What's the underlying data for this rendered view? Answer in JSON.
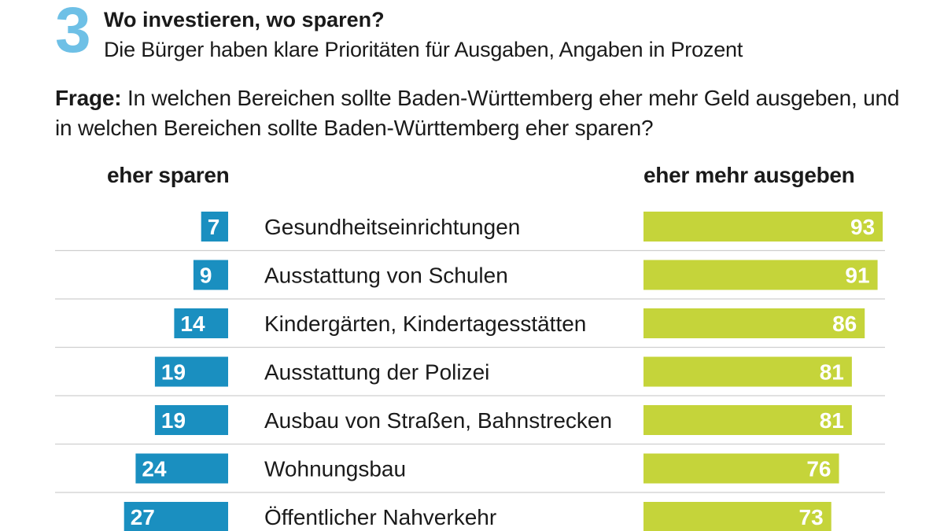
{
  "header": {
    "number": "3",
    "title": "Wo investieren, wo sparen?",
    "subtitle": "Die Bürger haben klare Prioritäten für Ausgaben, Angaben in Prozent"
  },
  "question": {
    "label": "Frage:",
    "text": "In welchen Bereichen sollte Baden-Württemberg eher mehr Geld ausgeben, und in welchen Bereichen sollte Baden-Württemberg eher sparen?"
  },
  "colors": {
    "save_bar": "#1a8fc0",
    "spend_bar": "#c5d43a",
    "number_accent": "#6ec0e6",
    "divider": "#cfcfcf"
  },
  "chart_data": {
    "type": "bar",
    "title": "Wo investieren, wo sparen?",
    "unit": "Prozent",
    "categories": [
      "Gesundheitseinrichtungen",
      "Ausstattung von Schulen",
      "Kindergärten, Kindertagesstätten",
      "Ausstattung der Polizei",
      "Ausbau von Straßen, Bahnstrecken",
      "Wohnungsbau",
      "Öffentlicher Nahverkehr"
    ],
    "series": [
      {
        "name": "eher sparen",
        "values": [
          7,
          9,
          14,
          19,
          19,
          24,
          27
        ]
      },
      {
        "name": "eher mehr ausgeben",
        "values": [
          93,
          91,
          86,
          81,
          81,
          76,
          73
        ]
      }
    ]
  }
}
